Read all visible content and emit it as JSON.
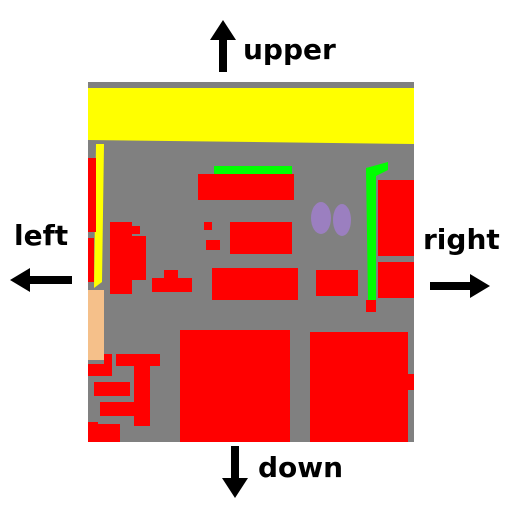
{
  "directions": {
    "up": "upper",
    "down": "down",
    "left": "left",
    "right": "right"
  },
  "legend_colors": {
    "road": "#808080",
    "building": "#ff0000",
    "major_road": "#ffff00",
    "vegetation": "#00ff00",
    "bare_soil": "#f5c08a",
    "water_feature": "#9b7fc0"
  }
}
